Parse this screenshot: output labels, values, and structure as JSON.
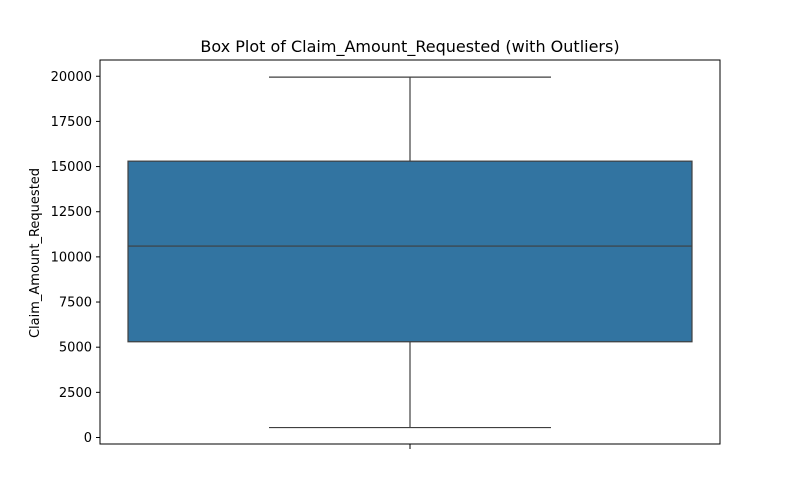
{
  "chart_data": {
    "type": "box",
    "title": "Box Plot of Claim_Amount_Requested (with Outliers)",
    "xlabel": "",
    "ylabel": "Claim_Amount_Requested",
    "ylim": [
      -360,
      20900
    ],
    "yticks": [
      0,
      2500,
      5000,
      7500,
      10000,
      12500,
      15000,
      17500,
      20000
    ],
    "ytick_labels": [
      "0",
      "2500",
      "5000",
      "7500",
      "10000",
      "12500",
      "15000",
      "17500",
      "20000"
    ],
    "grid": false,
    "legend": "none",
    "series": [
      {
        "whisker_low": 550,
        "q1": 5300,
        "median": 10600,
        "q3": 15300,
        "whisker_high": 19950,
        "outliers": []
      }
    ],
    "colors": {
      "box_fill": "#3274a1",
      "box_edge": "#3f3f3f",
      "axis": "#000000",
      "background": "#ffffff"
    }
  }
}
